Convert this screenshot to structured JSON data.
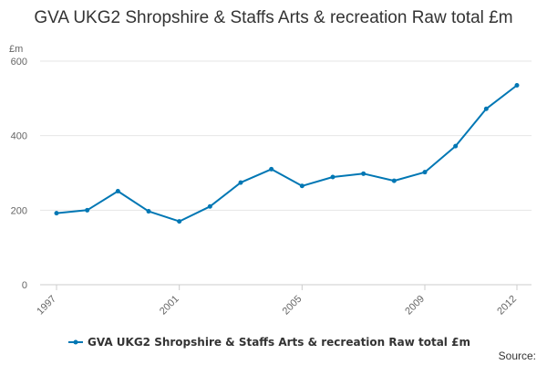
{
  "chart_data": {
    "type": "line",
    "title": "GVA UKG2 Shropshire & Staffs Arts & recreation Raw total £m",
    "ylabel": "£m",
    "xlabel": "",
    "x": [
      1997,
      1998,
      1999,
      2000,
      2001,
      2002,
      2003,
      2004,
      2005,
      2006,
      2007,
      2008,
      2009,
      2010,
      2011,
      2012
    ],
    "series": [
      {
        "name": "GVA UKG2 Shropshire & Staffs Arts & recreation Raw total £m",
        "color": "#0077b4",
        "values": [
          192,
          200,
          251,
          197,
          170,
          210,
          274,
          310,
          265,
          289,
          298,
          279,
          302,
          372,
          472,
          535
        ]
      }
    ],
    "x_ticks": [
      "1997",
      "2001",
      "2005",
      "2009",
      "2012"
    ],
    "y_ticks": [
      "0",
      "200",
      "400",
      "600"
    ],
    "ylim": [
      0,
      600
    ],
    "grid": "horizontal",
    "legend_position": "bottom",
    "source_label": "Source:"
  }
}
